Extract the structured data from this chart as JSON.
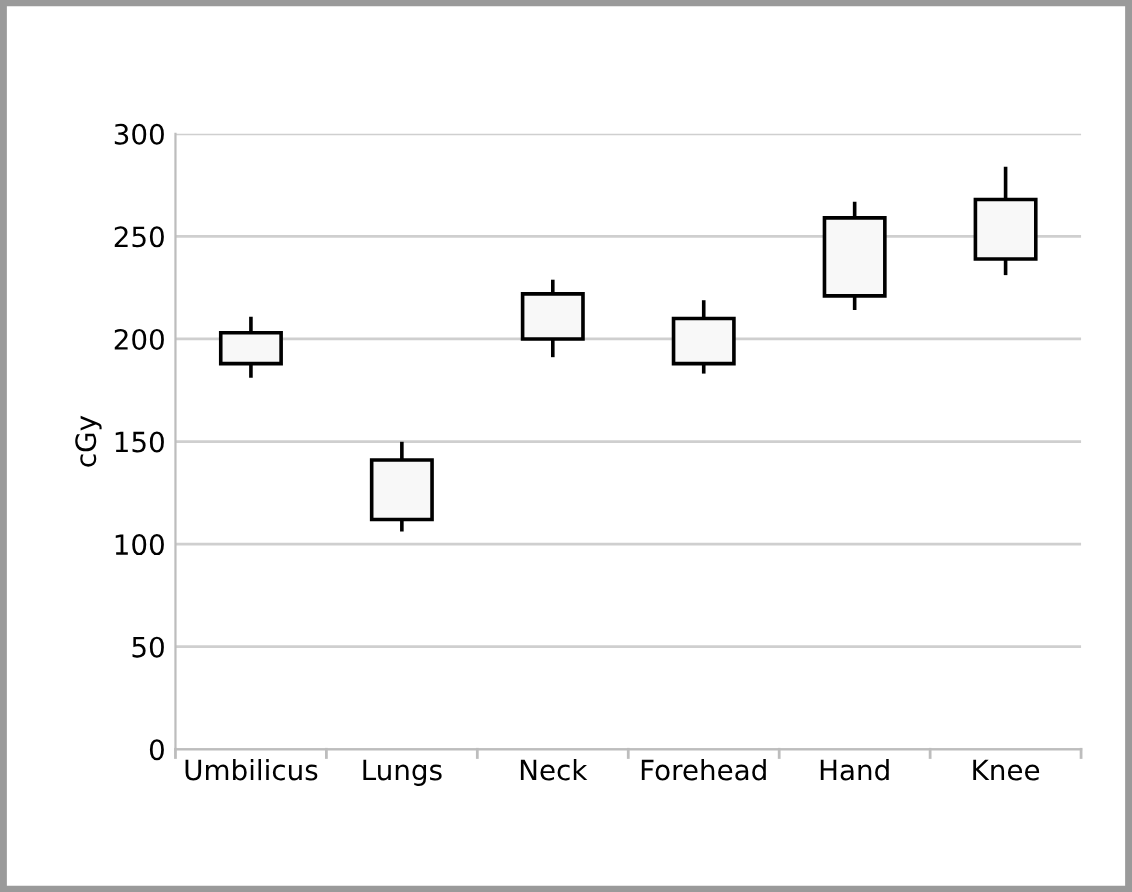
{
  "chart_data": {
    "type": "candlestick",
    "ylabel": "cGy",
    "categories": [
      "Umbilicus",
      "Lungs",
      "Neck",
      "Forehead",
      "Hand",
      "Knee"
    ],
    "ohlc": [
      [
        188,
        210,
        182,
        203
      ],
      [
        112,
        149,
        107,
        141
      ],
      [
        200,
        228,
        192,
        222
      ],
      [
        188,
        218,
        184,
        210
      ],
      [
        221,
        266,
        215,
        259
      ],
      [
        239,
        283,
        232,
        268
      ]
    ],
    "color": "#f8f8f8",
    "ylim": [
      0,
      300
    ],
    "yticks": [
      0,
      50,
      100,
      150,
      200,
      250,
      300
    ],
    "grid": "y"
  }
}
